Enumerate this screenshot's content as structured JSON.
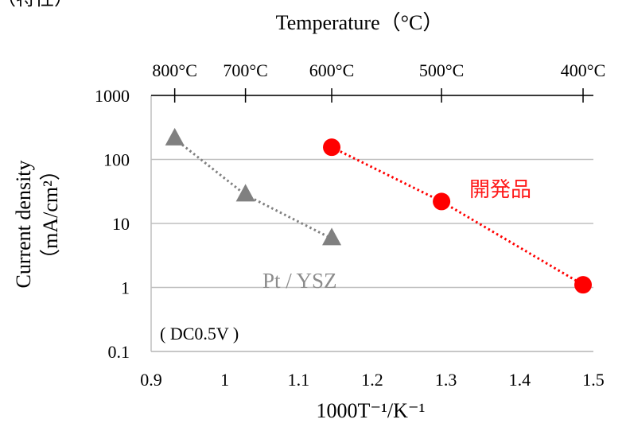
{
  "page_fragment": "（特性）",
  "chart_data": {
    "type": "scatter",
    "title": "",
    "top_axis": {
      "label": "Temperature（°C）",
      "ticks": [
        {
          "label": "800°C",
          "x": 0.932
        },
        {
          "label": "700°C",
          "x": 1.028
        },
        {
          "label": "600°C",
          "x": 1.145
        },
        {
          "label": "500°C",
          "x": 1.294
        },
        {
          "label": "400°C",
          "x": 1.486
        }
      ]
    },
    "xlabel": "1000T⁻¹/K⁻¹",
    "ylabel_line1": "Current density",
    "ylabel_line2": "（mA/cm²）",
    "xlim": [
      0.9,
      1.5
    ],
    "ylim": [
      0.1,
      1000
    ],
    "yscale": "log",
    "x_ticks": [
      {
        "value": 0.9,
        "label": "0.9"
      },
      {
        "value": 1.0,
        "label": "1"
      },
      {
        "value": 1.1,
        "label": "1.1"
      },
      {
        "value": 1.2,
        "label": "1.2"
      },
      {
        "value": 1.3,
        "label": "1.3"
      },
      {
        "value": 1.4,
        "label": "1.4"
      },
      {
        "value": 1.5,
        "label": "1.5"
      }
    ],
    "y_ticks": [
      {
        "value": 0.1,
        "label": "0.1"
      },
      {
        "value": 1,
        "label": "1"
      },
      {
        "value": 10,
        "label": "10"
      },
      {
        "value": 100,
        "label": "100"
      },
      {
        "value": 1000,
        "label": "1000"
      }
    ],
    "grid": "horizontal",
    "annotation": "( DC0.5V )",
    "series": [
      {
        "name": "Pt / YSZ",
        "marker": "triangle",
        "color": "#808080",
        "line": "dotted",
        "x": [
          0.932,
          1.028,
          1.145
        ],
        "y": [
          210,
          28,
          5.8
        ]
      },
      {
        "name": "開発品",
        "marker": "circle",
        "color": "#ff0000",
        "line": "dotted",
        "x": [
          1.145,
          1.294,
          1.486
        ],
        "y": [
          155,
          22,
          1.1
        ]
      }
    ]
  }
}
